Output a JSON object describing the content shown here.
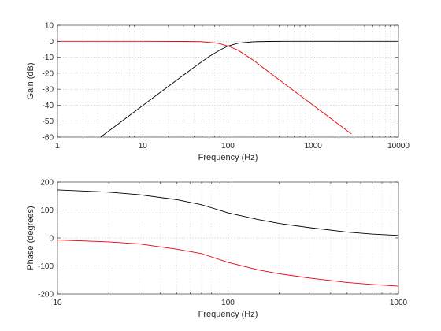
{
  "chart_data": [
    {
      "type": "line",
      "title": "",
      "xlabel": "Frequency (Hz)",
      "ylabel": "Gain (dB)",
      "xscale": "log",
      "xlim": [
        1,
        10000
      ],
      "ylim": [
        -60,
        10
      ],
      "xticks": [
        1,
        10,
        100,
        1000,
        10000
      ],
      "xtick_labels": [
        "1",
        "10",
        "100",
        "1000",
        "10000"
      ],
      "yticks": [
        10,
        0,
        -10,
        -20,
        -30,
        -40,
        -50,
        -60
      ],
      "ytick_labels": [
        "10",
        "0",
        "-10",
        "-20",
        "-30",
        "-40",
        "-50",
        "-60"
      ],
      "grid": true,
      "legend": "none",
      "series": [
        {
          "color": "#000000",
          "x": [
            3.2,
            5,
            10,
            20,
            40,
            60,
            80,
            100,
            130,
            150,
            200,
            300,
            500,
            1000,
            10000
          ],
          "y": [
            -60,
            -52.3,
            -40.2,
            -28.2,
            -16.3,
            -9.6,
            -5.6,
            -3.0,
            -1.3,
            -0.9,
            -0.3,
            -0.1,
            0,
            0,
            0
          ]
        },
        {
          "color": "#e8000b",
          "x": [
            1,
            10,
            30,
            50,
            70,
            80,
            100,
            130,
            200,
            300,
            500,
            1000,
            2000,
            2800
          ],
          "y": [
            0,
            0,
            -0.1,
            -0.3,
            -1.0,
            -1.5,
            -3.0,
            -5.5,
            -12.0,
            -19.2,
            -28.0,
            -40.1,
            -52.1,
            -58.0
          ]
        }
      ]
    },
    {
      "type": "line",
      "title": "",
      "xlabel": "Frequency (Hz)",
      "ylabel": "Phase (degrees)",
      "xscale": "log",
      "xlim": [
        10,
        1000
      ],
      "ylim": [
        -200,
        200
      ],
      "xticks": [
        10,
        100,
        1000
      ],
      "xtick_labels": [
        "10",
        "100",
        "1000"
      ],
      "yticks": [
        200,
        100,
        0,
        -100,
        -200
      ],
      "ytick_labels": [
        "200",
        "100",
        "0",
        "-100",
        "-200"
      ],
      "grid": true,
      "legend": "none",
      "series": [
        {
          "color": "#000000",
          "x": [
            10,
            20,
            30,
            50,
            70,
            100,
            150,
            200,
            300,
            500,
            700,
            1000
          ],
          "y": [
            172,
            164,
            155,
            137,
            119,
            90,
            66,
            52,
            37,
            21,
            14,
            9
          ]
        },
        {
          "color": "#e8000b",
          "x": [
            10,
            20,
            30,
            50,
            70,
            100,
            150,
            200,
            300,
            500,
            700,
            1000
          ],
          "y": [
            -7,
            -14,
            -21,
            -40,
            -56,
            -87,
            -114,
            -128,
            -143,
            -159,
            -166,
            -172
          ]
        }
      ]
    }
  ]
}
